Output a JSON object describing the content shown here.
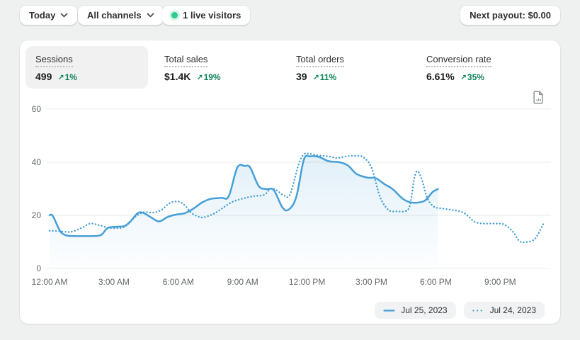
{
  "toolbar": {
    "date_filter": {
      "label": "Today"
    },
    "channel_filter": {
      "label": "All channels"
    },
    "live_visitors": {
      "label": "1 live visitors"
    },
    "payout": {
      "label": "Next payout: $0.00"
    }
  },
  "icons": {
    "increase_arrow": "↗"
  },
  "colors": {
    "line_blue": "#459fd6",
    "positive_green": "#0e8457",
    "live_dot_green": "#2fcb8e",
    "gridline": "#e7e8ea",
    "active_tab_bg": "#f1f1f2"
  },
  "metrics": [
    {
      "label": "Sessions",
      "value": "499",
      "delta": "1%",
      "active": true
    },
    {
      "label": "Total sales",
      "value": "$1.4K",
      "delta": "19%",
      "active": false
    },
    {
      "label": "Total orders",
      "value": "39",
      "delta": "11%",
      "active": false
    },
    {
      "label": "Conversion rate",
      "value": "6.61%",
      "delta": "35%",
      "active": false
    }
  ],
  "chart_data": {
    "type": "line",
    "title": "",
    "xlabel": "",
    "ylabel": "",
    "ylim": [
      0,
      60
    ],
    "yticks": [
      0,
      20,
      40,
      60
    ],
    "xtick_hours": [
      0,
      3,
      6,
      9,
      12,
      15,
      18,
      21
    ],
    "xticks": [
      "12:00 AM",
      "3:00 AM",
      "6:00 AM",
      "9:00 AM",
      "12:00 PM",
      "3:00 PM",
      "6:00 PM",
      "9:00 PM"
    ],
    "grid": "horizontal",
    "legend_position": "bottom-right",
    "x_unit": "hour_of_day",
    "series": [
      {
        "name": "Jul 25, 2023",
        "style": "solid",
        "fill": true,
        "points": [
          [
            0,
            20
          ],
          [
            0.15,
            19.8
          ],
          [
            0.5,
            14
          ],
          [
            0.8,
            12.4
          ],
          [
            1.2,
            12.2
          ],
          [
            1.6,
            12.2
          ],
          [
            2,
            12.2
          ],
          [
            2.4,
            12.6
          ],
          [
            2.7,
            15.2
          ],
          [
            3.1,
            15.7
          ],
          [
            3.5,
            16
          ],
          [
            3.8,
            18
          ],
          [
            4.1,
            20.8
          ],
          [
            4.35,
            21
          ],
          [
            4.7,
            19.4
          ],
          [
            5.1,
            17.7
          ],
          [
            5.5,
            19.4
          ],
          [
            5.9,
            20.3
          ],
          [
            6.3,
            20.8
          ],
          [
            6.7,
            22.5
          ],
          [
            7.1,
            24.8
          ],
          [
            7.5,
            26.2
          ],
          [
            8,
            26.6
          ],
          [
            8.35,
            27.2
          ],
          [
            8.75,
            38
          ],
          [
            9.1,
            38.6
          ],
          [
            9.35,
            38
          ],
          [
            9.75,
            31
          ],
          [
            10.1,
            29.9
          ],
          [
            10.45,
            29.5
          ],
          [
            10.85,
            23
          ],
          [
            11.15,
            22.2
          ],
          [
            11.5,
            27
          ],
          [
            11.85,
            41
          ],
          [
            12.15,
            42.2
          ],
          [
            12.55,
            42
          ],
          [
            13,
            40.4
          ],
          [
            13.5,
            40
          ],
          [
            13.9,
            38.8
          ],
          [
            14.3,
            35.6
          ],
          [
            14.8,
            34.2
          ],
          [
            15.2,
            34
          ],
          [
            15.6,
            31.8
          ],
          [
            16,
            29.8
          ],
          [
            16.45,
            26.3
          ],
          [
            16.8,
            24.9
          ],
          [
            17.15,
            24.8
          ],
          [
            17.5,
            25.6
          ],
          [
            17.85,
            28.8
          ],
          [
            18.1,
            29.9
          ]
        ]
      },
      {
        "name": "Jul 24, 2023",
        "style": "dotted",
        "fill": false,
        "points": [
          [
            0,
            14.2
          ],
          [
            0.5,
            14
          ],
          [
            1,
            13.8
          ],
          [
            1.5,
            15.3
          ],
          [
            1.9,
            16.9
          ],
          [
            2.3,
            16.3
          ],
          [
            2.7,
            15.4
          ],
          [
            3,
            15.2
          ],
          [
            3.4,
            15.4
          ],
          [
            3.7,
            17
          ],
          [
            4,
            19.5
          ],
          [
            4.4,
            21.2
          ],
          [
            4.8,
            21
          ],
          [
            5.2,
            22
          ],
          [
            5.6,
            24.6
          ],
          [
            6,
            25.2
          ],
          [
            6.3,
            23.8
          ],
          [
            6.6,
            21
          ],
          [
            7,
            19.3
          ],
          [
            7.3,
            19.5
          ],
          [
            7.7,
            20.8
          ],
          [
            8,
            22.4
          ],
          [
            8.5,
            25
          ],
          [
            9,
            26.3
          ],
          [
            9.5,
            27.2
          ],
          [
            10,
            27.7
          ],
          [
            10.3,
            30
          ],
          [
            10.6,
            29.3
          ],
          [
            10.9,
            27.6
          ],
          [
            11.2,
            27.8
          ],
          [
            11.6,
            39
          ],
          [
            11.85,
            43
          ],
          [
            12.1,
            43.2
          ],
          [
            12.5,
            42.6
          ],
          [
            13,
            42.2
          ],
          [
            13.4,
            41.6
          ],
          [
            13.8,
            42.2
          ],
          [
            14.2,
            42.4
          ],
          [
            14.6,
            42
          ],
          [
            15,
            38
          ],
          [
            15.4,
            27
          ],
          [
            15.8,
            22
          ],
          [
            16.2,
            21.5
          ],
          [
            16.6,
            21.6
          ],
          [
            16.8,
            24
          ],
          [
            17,
            34
          ],
          [
            17.15,
            36.6
          ],
          [
            17.35,
            33.5
          ],
          [
            17.6,
            26.5
          ],
          [
            17.9,
            23.3
          ],
          [
            18.2,
            22.7
          ],
          [
            18.7,
            22.1
          ],
          [
            19.2,
            21.3
          ],
          [
            19.5,
            19.8
          ],
          [
            19.8,
            17.6
          ],
          [
            20.2,
            16.9
          ],
          [
            20.8,
            16.9
          ],
          [
            21.2,
            16.5
          ],
          [
            21.6,
            13.8
          ],
          [
            21.9,
            10.3
          ],
          [
            22.2,
            9.9
          ],
          [
            22.6,
            11
          ],
          [
            22.9,
            15
          ],
          [
            23.05,
            17.5
          ]
        ]
      }
    ]
  }
}
